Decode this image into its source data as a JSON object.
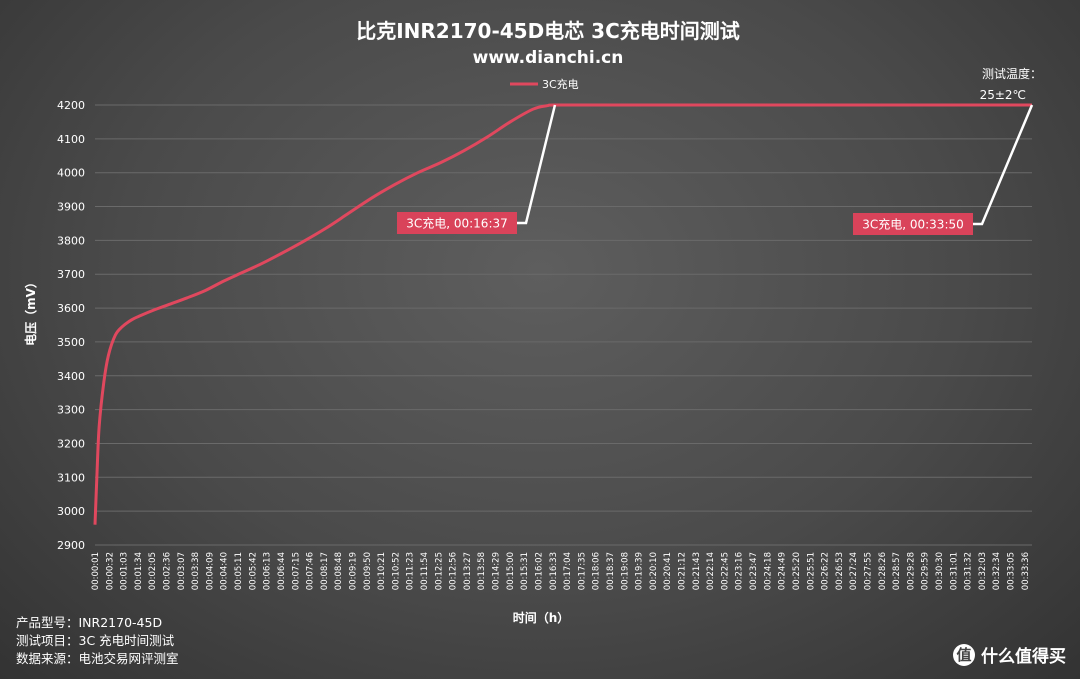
{
  "chart_data": {
    "type": "line",
    "title": "比克INR2170-45D电芯 3C充电时间测试",
    "subtitle": "www.dianchi.cn",
    "xlabel": "时间（h）",
    "ylabel": "电压（mV）",
    "ylim": [
      2900,
      4200
    ],
    "yticks": [
      2900,
      3000,
      3100,
      3200,
      3300,
      3400,
      3500,
      3600,
      3700,
      3800,
      3900,
      4000,
      4100,
      4200
    ],
    "grid": true,
    "legend_position": "top-center",
    "xticks": [
      "00:00:01",
      "00:00:32",
      "00:01:03",
      "00:01:34",
      "00:02:05",
      "00:02:36",
      "00:03:07",
      "00:03:38",
      "00:04:09",
      "00:04:40",
      "00:05:11",
      "00:05:42",
      "00:06:13",
      "00:06:44",
      "00:07:15",
      "00:07:46",
      "00:08:17",
      "00:08:48",
      "00:09:19",
      "00:09:50",
      "00:10:21",
      "00:10:52",
      "00:11:23",
      "00:11:54",
      "00:12:25",
      "00:12:56",
      "00:13:27",
      "00:13:58",
      "00:14:29",
      "00:15:00",
      "00:15:31",
      "00:16:02",
      "00:16:33",
      "00:17:04",
      "00:17:35",
      "00:18:06",
      "00:18:37",
      "00:19:08",
      "00:19:39",
      "00:20:10",
      "00:20:41",
      "00:21:12",
      "00:21:43",
      "00:22:14",
      "00:22:45",
      "00:23:16",
      "00:23:47",
      "00:24:18",
      "00:24:49",
      "00:25:20",
      "00:25:51",
      "00:26:22",
      "00:26:53",
      "00:27:24",
      "00:27:55",
      "00:28:26",
      "00:28:57",
      "00:29:28",
      "00:29:59",
      "00:30:30",
      "00:31:01",
      "00:31:32",
      "00:32:03",
      "00:32:34",
      "00:33:05",
      "00:33:36"
    ],
    "series": [
      {
        "name": "3C充电",
        "color": "#e0485e",
        "x_seconds": [
          1,
          5,
          10,
          20,
          30,
          45,
          60,
          80,
          100,
          130,
          160,
          200,
          240,
          280,
          320,
          360,
          400,
          450,
          500,
          550,
          600,
          650,
          700,
          750,
          800,
          850,
          900,
          950,
          980,
          997,
          1100,
          1300,
          1500,
          1700,
          1900,
          2030
        ],
        "y": [
          2960,
          3100,
          3250,
          3380,
          3460,
          3520,
          3545,
          3565,
          3578,
          3595,
          3610,
          3630,
          3652,
          3680,
          3705,
          3730,
          3758,
          3795,
          3835,
          3880,
          3925,
          3965,
          4000,
          4030,
          4065,
          4105,
          4150,
          4188,
          4198,
          4200,
          4200,
          4200,
          4200,
          4200,
          4200,
          4200
        ]
      }
    ],
    "annotations": [
      {
        "label": "3C充电, 00:16:37",
        "time_seconds": 997,
        "value": 4200
      },
      {
        "label": "3C充电, 00:33:50",
        "time_seconds": 2030,
        "value": 4200
      }
    ],
    "temp_note": [
      "测试温度：",
      "25±2℃"
    ]
  },
  "footer": {
    "model": "产品型号：INR2170-45D",
    "item": "测试项目：3C 充电时间测试",
    "source": "数据来源：电池交易网评测室"
  },
  "watermark": {
    "icon_glyph": "值",
    "text": "什么值得买"
  }
}
